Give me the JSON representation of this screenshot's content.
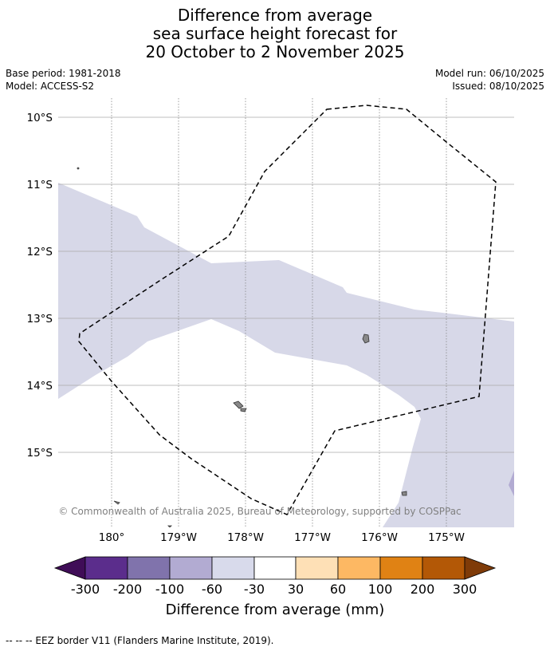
{
  "title": {
    "line1": "Difference from average",
    "line2": "sea surface height forecast for",
    "line3": "20 October to 2 November 2025"
  },
  "meta": {
    "base_period": "Base period: 1981-2018",
    "model": "Model: ACCESS-S2",
    "model_run": "Model run: 06/10/2025",
    "issued": "Issued: 08/10/2025"
  },
  "map": {
    "lat_labels": [
      "10°S",
      "11°S",
      "12°S",
      "13°S",
      "14°S",
      "15°S"
    ],
    "lon_labels": [
      "180°",
      "179°W",
      "178°W",
      "177°W",
      "176°W",
      "175°W"
    ],
    "copyright": "© Commonwealth of Australia 2025, Bureau of Meteorology, supported by COSPPac",
    "layers": [
      {
        "name": "sea-level-anomaly-field",
        "class": "-60 to -30",
        "color": "#d7d8e8"
      },
      {
        "name": "eez-border",
        "style": "dashed",
        "color": "#000000"
      }
    ]
  },
  "colorbar": {
    "label": "Difference from average (mm)",
    "ticks": [
      "-300",
      "-200",
      "-100",
      "-60",
      "-30",
      "30",
      "60",
      "100",
      "200",
      "300"
    ],
    "colors": [
      "#3f0d57",
      "#5b2d8c",
      "#8073ac",
      "#b2abd2",
      "#d8daeb",
      "#ffffff",
      "#fee0b6",
      "#fdb863",
      "#e08214",
      "#b35806",
      "#7f3b08"
    ]
  },
  "footnote": "--  --  -- EEZ border V11 (Flanders Marine Institute, 2019)."
}
